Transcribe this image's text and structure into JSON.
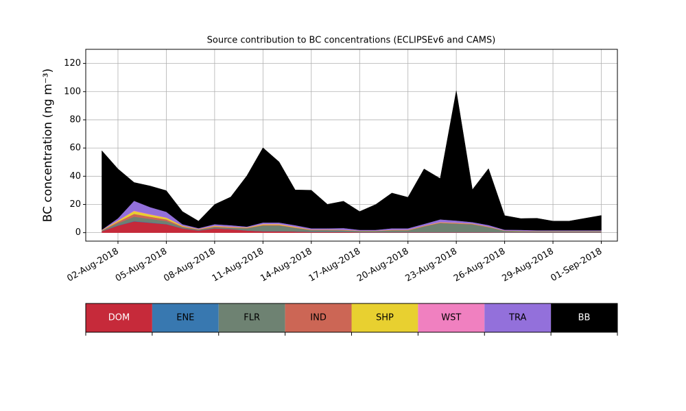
{
  "chart_data": {
    "type": "stacked_area",
    "title": "Source contribution to BC concentrations (ECLIPSEv6 and CAMS)",
    "y_label": "BC concentration (ng m⁻³)",
    "x": [
      "2018-08-01",
      "2018-08-02",
      "2018-08-03",
      "2018-08-04",
      "2018-08-05",
      "2018-08-06",
      "2018-08-07",
      "2018-08-08",
      "2018-08-09",
      "2018-08-10",
      "2018-08-11",
      "2018-08-12",
      "2018-08-13",
      "2018-08-14",
      "2018-08-15",
      "2018-08-16",
      "2018-08-17",
      "2018-08-18",
      "2018-08-19",
      "2018-08-20",
      "2018-08-21",
      "2018-08-22",
      "2018-08-23",
      "2018-08-24",
      "2018-08-25",
      "2018-08-26",
      "2018-08-27",
      "2018-08-28",
      "2018-08-29",
      "2018-08-30",
      "2018-08-31",
      "2018-09-01"
    ],
    "series": [
      {
        "name": "DOM",
        "color": "#c62a3a",
        "values": [
          1,
          5,
          8,
          7,
          6,
          3,
          1.5,
          3,
          2.5,
          1.5,
          1,
          1,
          0.8,
          0.5,
          0.5,
          0.5,
          0.3,
          0.3,
          0.3,
          0.3,
          0.3,
          0.3,
          0.3,
          0.3,
          0.3,
          0.2,
          0.2,
          0.2,
          0.2,
          0.2,
          0.2,
          0.2
        ]
      },
      {
        "name": "ENE",
        "color": "#3878b0",
        "values": [
          0.1,
          0.2,
          0.3,
          0.3,
          0.2,
          0.1,
          0.1,
          0.1,
          0.1,
          0.1,
          0.1,
          0.1,
          0.1,
          0.1,
          0.1,
          0.1,
          0.1,
          0.1,
          0.1,
          0.1,
          0.1,
          0.1,
          0.1,
          0.1,
          0.1,
          0.1,
          0.1,
          0.1,
          0.1,
          0.1,
          0.1,
          0.1
        ]
      },
      {
        "name": "FLR",
        "color": "#6e8272",
        "values": [
          0.3,
          1.5,
          3,
          2.5,
          2,
          0.8,
          0.5,
          0.8,
          0.8,
          1.5,
          4,
          4,
          2.5,
          1.2,
          1.2,
          1,
          0.8,
          0.8,
          1.2,
          1.2,
          4,
          6.5,
          6,
          5.5,
          3.5,
          1,
          0.8,
          0.6,
          0.6,
          0.6,
          0.6,
          0.6
        ]
      },
      {
        "name": "IND",
        "color": "#cc6655",
        "values": [
          0.2,
          1,
          2,
          1.5,
          1.2,
          0.5,
          0.3,
          0.5,
          0.4,
          0.3,
          0.4,
          0.4,
          0.3,
          0.2,
          0.2,
          0.2,
          0.1,
          0.1,
          0.2,
          0.2,
          0.3,
          0.3,
          0.3,
          0.3,
          0.2,
          0.1,
          0.1,
          0.1,
          0.1,
          0.1,
          0.1,
          0.1
        ]
      },
      {
        "name": "SHP",
        "color": "#e8d030",
        "values": [
          0.2,
          0.8,
          2,
          1.5,
          1.2,
          0.5,
          0.2,
          0.4,
          0.3,
          0.3,
          0.5,
          0.5,
          0.4,
          0.2,
          0.2,
          0.2,
          0.1,
          0.1,
          0.2,
          0.2,
          0.2,
          0.2,
          0.2,
          0.2,
          0.2,
          0.1,
          0.1,
          0.1,
          0.1,
          0.1,
          0.1,
          0.1
        ]
      },
      {
        "name": "WST",
        "color": "#f080c0",
        "values": [
          0.1,
          0.2,
          0.3,
          0.3,
          0.2,
          0.1,
          0.1,
          0.2,
          0.2,
          0.1,
          0.2,
          0.2,
          0.2,
          0.1,
          0.1,
          0.1,
          0.1,
          0.1,
          0.1,
          0.1,
          0.1,
          0.2,
          0.2,
          0.1,
          0.1,
          0.1,
          0.1,
          0.1,
          0.1,
          0.1,
          0.1,
          0.1
        ]
      },
      {
        "name": "TRA",
        "color": "#9370db",
        "values": [
          0.2,
          1.5,
          7,
          5,
          4,
          1,
          0.5,
          1,
          1,
          0.5,
          1,
          1,
          1,
          0.8,
          0.8,
          1.2,
          0.5,
          0.5,
          1,
          1,
          1.2,
          1.8,
          1.5,
          1,
          1,
          0.5,
          0.6,
          0.5,
          0.5,
          0.5,
          0.5,
          0.5
        ]
      },
      {
        "name": "BB",
        "color": "#000000",
        "values": [
          56,
          35,
          13,
          15,
          15,
          9,
          5,
          14,
          20,
          36,
          53,
          43,
          25,
          27,
          17,
          19,
          13,
          18,
          25,
          22,
          39,
          29,
          92,
          23,
          40,
          10,
          8,
          8.5,
          6.5,
          6.5,
          8.5,
          10.5
        ]
      }
    ],
    "xlim": [
      "2018-07-31",
      "2018-09-02"
    ],
    "xticks": [
      {
        "value": "2018-08-02",
        "label": "02-Aug-2018"
      },
      {
        "value": "2018-08-05",
        "label": "05-Aug-2018"
      },
      {
        "value": "2018-08-08",
        "label": "08-Aug-2018"
      },
      {
        "value": "2018-08-11",
        "label": "11-Aug-2018"
      },
      {
        "value": "2018-08-14",
        "label": "14-Aug-2018"
      },
      {
        "value": "2018-08-17",
        "label": "17-Aug-2018"
      },
      {
        "value": "2018-08-20",
        "label": "20-Aug-2018"
      },
      {
        "value": "2018-08-23",
        "label": "23-Aug-2018"
      },
      {
        "value": "2018-08-26",
        "label": "26-Aug-2018"
      },
      {
        "value": "2018-08-29",
        "label": "29-Aug-2018"
      },
      {
        "value": "2018-09-01",
        "label": "01-Sep-2018"
      }
    ],
    "ylim": [
      -6,
      130
    ],
    "yticks": [
      0,
      20,
      40,
      60,
      80,
      100,
      120
    ],
    "grid": true
  }
}
